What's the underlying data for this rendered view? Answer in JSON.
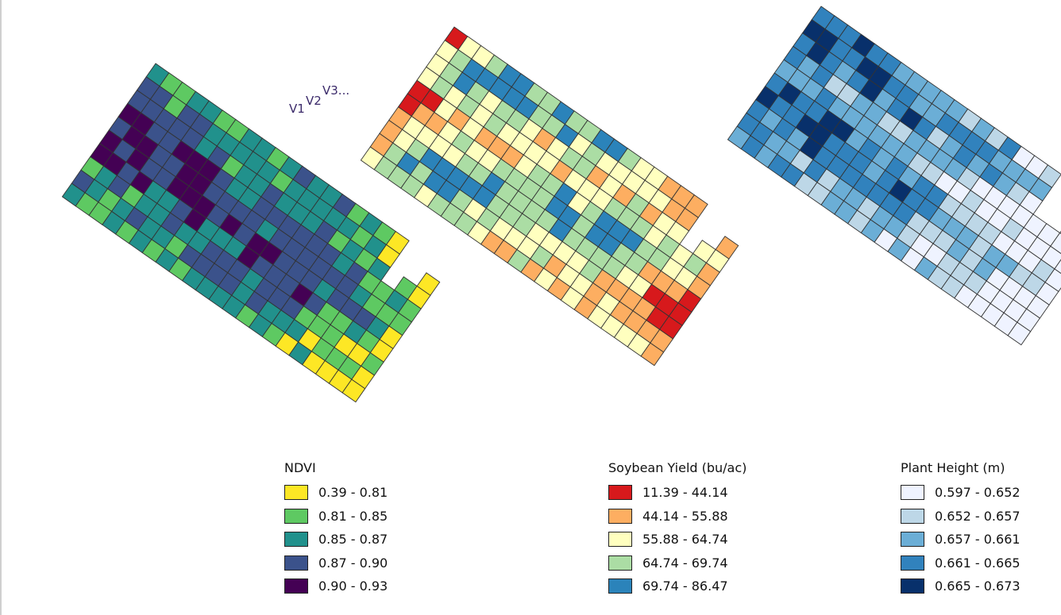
{
  "map_data": {
    "type": "choropleth-grid",
    "row_labels": [
      "V1",
      "V2",
      "V3..."
    ],
    "maps": [
      {
        "id": "ndvi",
        "legend_title": "NDVI",
        "classes": [
          {
            "label": "0.39 - 0.81",
            "color": "#fde725"
          },
          {
            "label": "0.81 - 0.85",
            "color": "#5ec962"
          },
          {
            "label": "0.85 - 0.87",
            "color": "#21918c"
          },
          {
            "label": "0.87 - 0.90",
            "color": "#3b528b"
          },
          {
            "label": "0.90 - 0.93",
            "color": "#440154"
          }
        ]
      },
      {
        "id": "yield",
        "legend_title": "Soybean Yield (bu/ac)",
        "classes": [
          {
            "label": "11.39 - 44.14",
            "color": "#d7191c"
          },
          {
            "label": "44.14 - 55.88",
            "color": "#fdae61"
          },
          {
            "label": "55.88 - 64.74",
            "color": "#ffffbf"
          },
          {
            "label": "64.74 - 69.74",
            "color": "#abdda4"
          },
          {
            "label": "69.74 - 86.47",
            "color": "#2b83ba"
          }
        ]
      },
      {
        "id": "height",
        "legend_title": "Plant Height (m)",
        "classes": [
          {
            "label": "0.597 - 0.652",
            "color": "#eff3ff"
          },
          {
            "label": "0.652 - 0.657",
            "color": "#bdd7e7"
          },
          {
            "label": "0.657 - 0.661",
            "color": "#6baed6"
          },
          {
            "label": "0.661 - 0.665",
            "color": "#3182bd"
          },
          {
            "label": "0.665 - 0.673",
            "color": "#08306b"
          }
        ]
      }
    ]
  }
}
